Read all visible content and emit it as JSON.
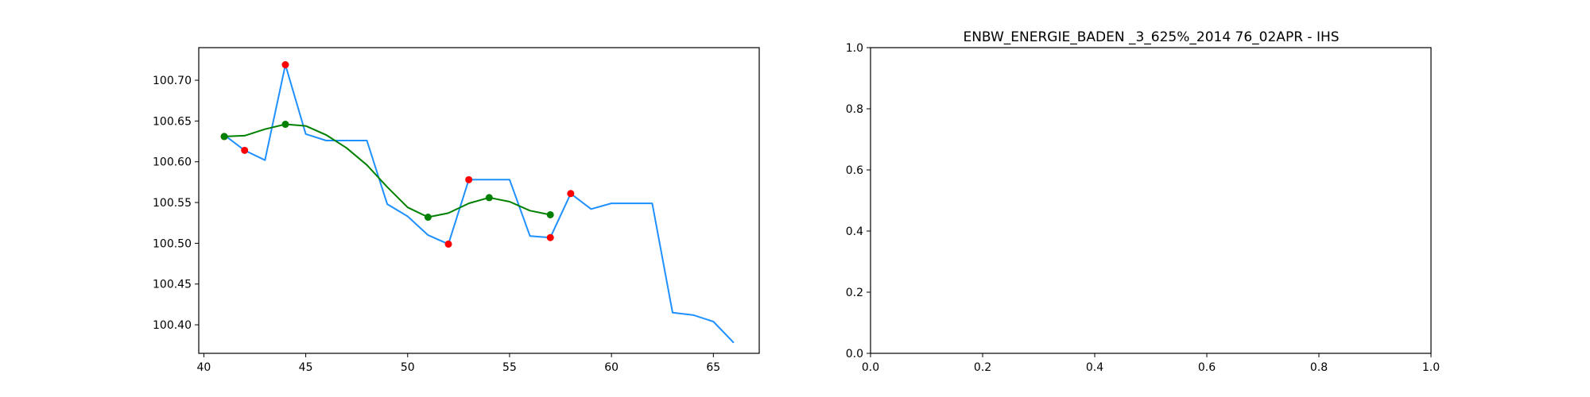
{
  "chart_data": [
    {
      "type": "line",
      "title": "",
      "xlabel": "",
      "ylabel": "",
      "xlim": [
        39.75,
        67.25
      ],
      "ylim": [
        100.365,
        100.74
      ],
      "xticks": [
        40,
        45,
        50,
        55,
        60,
        65
      ],
      "yticks": [
        100.4,
        100.45,
        100.5,
        100.55,
        100.6,
        100.65,
        100.7
      ],
      "grid": false,
      "series": [
        {
          "color": "#1e90ff",
          "style": "line",
          "points": [
            [
              41,
              100.633
            ],
            [
              42,
              100.614
            ],
            [
              43,
              100.602
            ],
            [
              44,
              100.719
            ],
            [
              45,
              100.634
            ],
            [
              46,
              100.626
            ],
            [
              47,
              100.626
            ],
            [
              48,
              100.626
            ],
            [
              49,
              100.548
            ],
            [
              50,
              100.533
            ],
            [
              51,
              100.51
            ],
            [
              52,
              100.499
            ],
            [
              53,
              100.578
            ],
            [
              54,
              100.578
            ],
            [
              55,
              100.578
            ],
            [
              56,
              100.509
            ],
            [
              57,
              100.507
            ],
            [
              58,
              100.561
            ],
            [
              59,
              100.542
            ],
            [
              60,
              100.549
            ],
            [
              61,
              100.549
            ],
            [
              62,
              100.549
            ],
            [
              63,
              100.415
            ],
            [
              64,
              100.412
            ],
            [
              65,
              100.404
            ],
            [
              66,
              100.378
            ]
          ]
        },
        {
          "color": "#ff0000",
          "style": "scatter",
          "points": [
            [
              41,
              100.631
            ],
            [
              42,
              100.614
            ],
            [
              44,
              100.719
            ],
            [
              52,
              100.499
            ],
            [
              53,
              100.578
            ],
            [
              57,
              100.507
            ],
            [
              58,
              100.561
            ]
          ]
        },
        {
          "color": "#008000",
          "style": "line",
          "points": [
            [
              41,
              100.631
            ],
            [
              42,
              100.632
            ],
            [
              43,
              100.64
            ],
            [
              44,
              100.646
            ],
            [
              45,
              100.644
            ],
            [
              46,
              100.633
            ],
            [
              47,
              100.617
            ],
            [
              48,
              100.596
            ],
            [
              49,
              100.569
            ],
            [
              50,
              100.544
            ],
            [
              51,
              100.532
            ],
            [
              52,
              100.537
            ],
            [
              53,
              100.549
            ],
            [
              54,
              100.556
            ],
            [
              55,
              100.551
            ],
            [
              56,
              100.54
            ],
            [
              57,
              100.535
            ]
          ]
        },
        {
          "color": "#008000",
          "style": "scatter",
          "points": [
            [
              41,
              100.631
            ],
            [
              44,
              100.646
            ],
            [
              51,
              100.532
            ],
            [
              54,
              100.556
            ],
            [
              57,
              100.535
            ]
          ]
        }
      ]
    },
    {
      "type": "line",
      "title": "ENBW_ENERGIE_BADEN _3_625%_2014 76_02APR - IHS",
      "xlabel": "",
      "ylabel": "",
      "xlim": [
        0,
        1
      ],
      "ylim": [
        0,
        1
      ],
      "xticks": [
        0.0,
        0.2,
        0.4,
        0.6,
        0.8,
        1.0
      ],
      "yticks": [
        0.0,
        0.2,
        0.4,
        0.6,
        0.8,
        1.0
      ],
      "tick_format": 1,
      "grid": false,
      "series": []
    }
  ]
}
